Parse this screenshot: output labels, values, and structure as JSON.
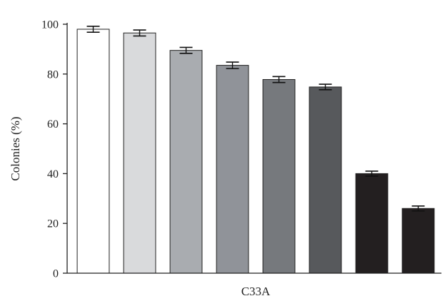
{
  "chart_data": {
    "type": "bar",
    "title": "",
    "xlabel": "C33A",
    "ylabel": "Colonies (%)",
    "ylim": [
      0,
      100
    ],
    "yticks": [
      0,
      20,
      40,
      60,
      80,
      100
    ],
    "grid": false,
    "legend": "none",
    "values": [
      98,
      96.5,
      89.5,
      83.5,
      77.8,
      74.8,
      40,
      26
    ],
    "errors": [
      1.2,
      1.2,
      1.2,
      1.3,
      1.2,
      1.1,
      1.0,
      1.0
    ],
    "colors": [
      "#ffffff",
      "#d9dadc",
      "#a9acb0",
      "#909399",
      "#76797d",
      "#57595c",
      "#231f20",
      "#231f20"
    ]
  }
}
